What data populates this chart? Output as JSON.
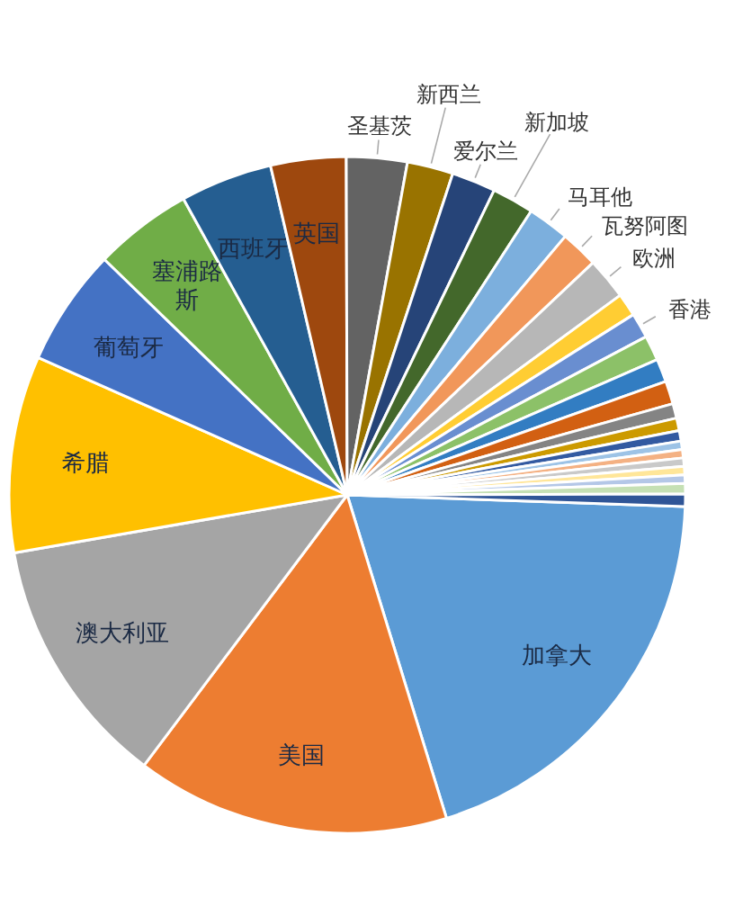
{
  "chart_data": {
    "type": "pie",
    "categories": [
      "加拿大",
      "美国",
      "澳大利亚",
      "希腊",
      "葡萄牙",
      "塞浦路斯",
      "西班牙",
      "英国",
      "圣基茨",
      "新西兰",
      "爱尔兰",
      "新加坡",
      "马耳他",
      "瓦努阿图",
      "欧洲",
      null,
      "香港",
      null,
      null,
      null,
      null,
      null,
      null,
      null,
      null,
      null,
      null,
      null,
      null,
      null
    ],
    "values": [
      19.7,
      15,
      12,
      9.4,
      5.6,
      4.7,
      4.4,
      3.6,
      2.9,
      2.2,
      2.1,
      2.0,
      2.0,
      1.8,
      2.0,
      1.1,
      1.2,
      1.2,
      1.1,
      1.1,
      0.7,
      0.6,
      0.5,
      0.4,
      0.4,
      0.4,
      0.4,
      0.4,
      0.5,
      0.6
    ],
    "colors": [
      "#5b9bd5",
      "#ed7d31",
      "#a5a5a5",
      "#ffc000",
      "#4472c4",
      "#70ad47",
      "#255e91",
      "#9e480e",
      "#636363",
      "#997300",
      "#264478",
      "#43682b",
      "#7cafdd",
      "#f1975a",
      "#b7b7b7",
      "#ffcd33",
      "#698ed0",
      "#8cc168",
      "#327dc2",
      "#d26012",
      "#848484",
      "#cc9a00",
      "#335aa1",
      "#9dc3e6",
      "#f4b183",
      "#c9c9c9",
      "#ffe699",
      "#b4c7e7",
      "#c5e0b4",
      "#2f5597"
    ],
    "legend": false
  }
}
